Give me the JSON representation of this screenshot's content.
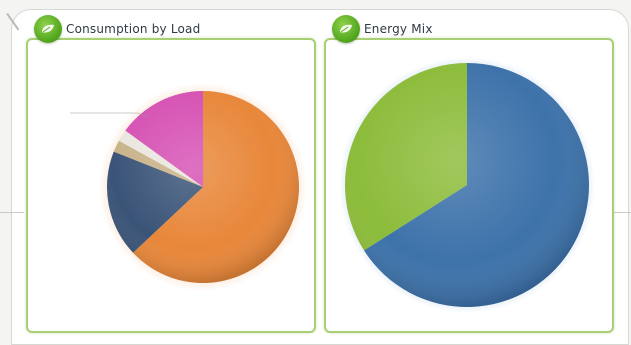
{
  "panels": {
    "load": {
      "title": "Consumption by Load",
      "icon": "leaf-icon"
    },
    "mix": {
      "title": "Energy Mix",
      "icon": "leaf-icon"
    }
  },
  "colors": {
    "panel_border": "#a9cf74",
    "icon_green": "#5aac22",
    "orange": "#e8873a",
    "navy": "#3a5478",
    "magenta": "#d652b4",
    "tan": "#c9b48a",
    "mix_blue": "#3d72aa",
    "mix_green": "#8cbc3a"
  },
  "chart_data": [
    {
      "type": "pie",
      "title": "Consumption by Load",
      "slices": [
        {
          "value": 63,
          "color": "#e8873a"
        },
        {
          "value": 18,
          "color": "#3a5478"
        },
        {
          "value": 2,
          "color": "#c9b48a"
        },
        {
          "value": 2,
          "color": "#eae6e0"
        },
        {
          "value": 15,
          "color": "#d652b4"
        }
      ]
    },
    {
      "type": "pie",
      "title": "Energy Mix",
      "slices": [
        {
          "value": 66,
          "color": "#3d72aa"
        },
        {
          "value": 34,
          "color": "#8cbc3a"
        }
      ]
    }
  ]
}
